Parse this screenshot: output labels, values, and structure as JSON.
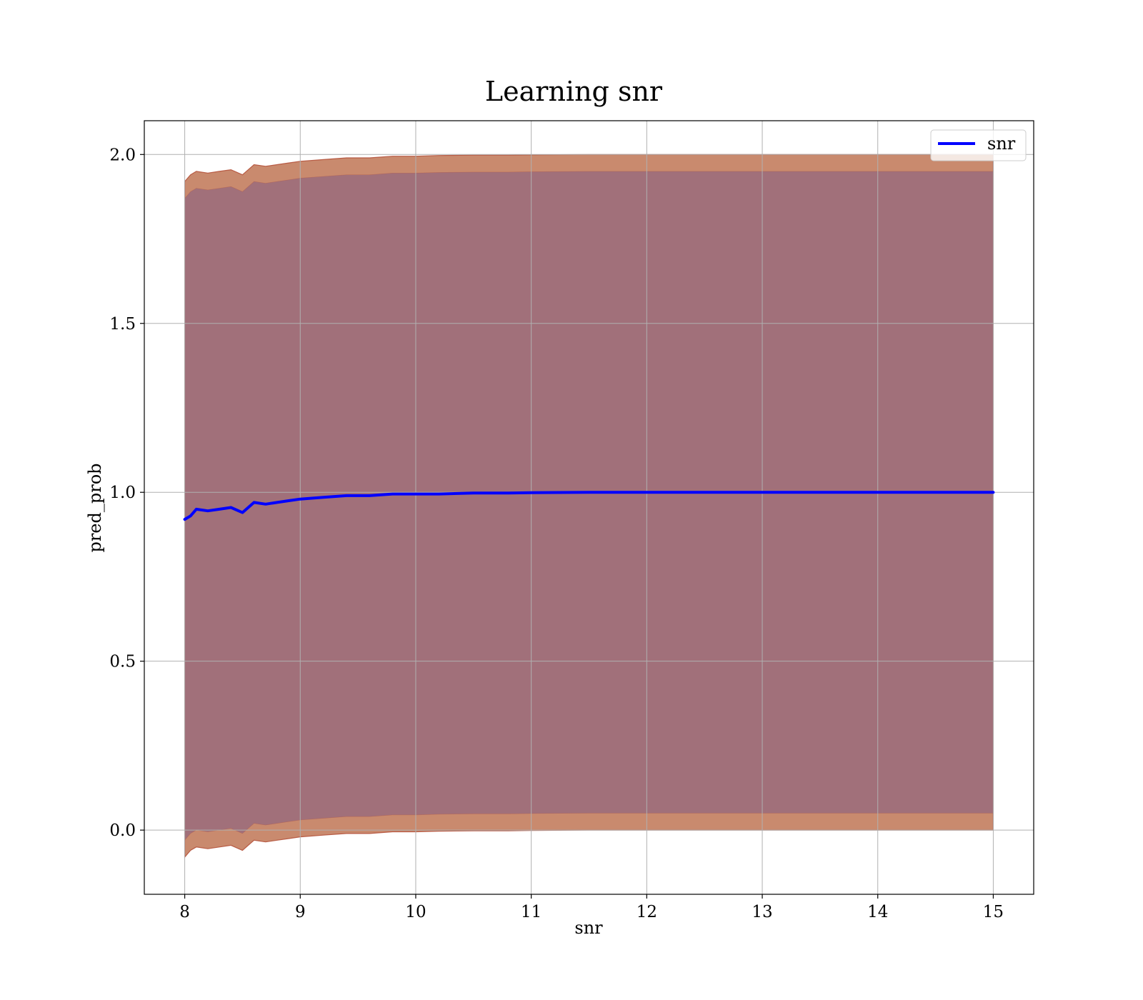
{
  "chart_data": {
    "type": "line",
    "title": "Learning snr",
    "xlabel": "snr",
    "ylabel": "pred_prob",
    "xlim": [
      7.65,
      15.35
    ],
    "ylim": [
      -0.19,
      2.1
    ],
    "xticks": [
      8,
      9,
      10,
      11,
      12,
      13,
      14,
      15
    ],
    "yticks": [
      0.0,
      0.5,
      1.0,
      1.5,
      2.0
    ],
    "xtick_labels": [
      "8",
      "9",
      "10",
      "11",
      "12",
      "13",
      "14",
      "15"
    ],
    "ytick_labels": [
      "0.0",
      "0.5",
      "1.0",
      "1.5",
      "2.0"
    ],
    "grid": true,
    "legend": {
      "position": "top-right",
      "entries": [
        "snr"
      ]
    },
    "colors": {
      "line": "#0000ff",
      "outer_band": "#c98a6e",
      "inner_band": "#a1707a",
      "band_edge": "#b4513a",
      "grid": "#b0b0b0"
    },
    "series": [
      {
        "name": "snr",
        "x": [
          8.0,
          8.05,
          8.1,
          8.2,
          8.3,
          8.4,
          8.5,
          8.6,
          8.7,
          8.8,
          8.9,
          9.0,
          9.2,
          9.4,
          9.6,
          9.8,
          10.0,
          10.2,
          10.5,
          10.8,
          11.0,
          11.5,
          12.0,
          13.0,
          14.0,
          15.0
        ],
        "y": [
          0.92,
          0.93,
          0.95,
          0.945,
          0.95,
          0.955,
          0.94,
          0.97,
          0.965,
          0.97,
          0.975,
          0.98,
          0.985,
          0.99,
          0.99,
          0.995,
          0.995,
          0.995,
          0.998,
          0.998,
          0.999,
          1.0,
          1.0,
          1.0,
          1.0,
          1.0
        ]
      }
    ],
    "bands": [
      {
        "x": [
          8.0,
          8.05,
          8.1,
          8.2,
          8.3,
          8.4,
          8.5,
          8.6,
          8.7,
          8.8,
          8.9,
          9.0,
          9.2,
          9.4,
          9.6,
          9.8,
          10.0,
          10.2,
          10.5,
          10.8,
          11.0,
          11.5,
          12.0,
          13.0,
          14.0,
          15.0
        ],
        "lower": [
          -0.08,
          -0.06,
          -0.05,
          -0.055,
          -0.05,
          -0.045,
          -0.06,
          -0.03,
          -0.035,
          -0.03,
          -0.025,
          -0.02,
          -0.015,
          -0.01,
          -0.01,
          -0.005,
          -0.005,
          -0.003,
          -0.002,
          -0.002,
          -0.001,
          0.0,
          0.0,
          0.0,
          0.0,
          0.0
        ],
        "upper": [
          1.92,
          1.94,
          1.95,
          1.945,
          1.95,
          1.955,
          1.94,
          1.97,
          1.965,
          1.97,
          1.975,
          1.98,
          1.985,
          1.99,
          1.99,
          1.995,
          1.995,
          1.997,
          1.998,
          1.998,
          1.999,
          2.0,
          2.0,
          2.0,
          2.0,
          2.0
        ]
      },
      {
        "x": [
          8.0,
          8.05,
          8.1,
          8.2,
          8.3,
          8.4,
          8.5,
          8.6,
          8.7,
          8.8,
          8.9,
          9.0,
          9.2,
          9.4,
          9.6,
          9.8,
          10.0,
          10.2,
          10.5,
          10.8,
          11.0,
          11.5,
          12.0,
          13.0,
          14.0,
          15.0
        ],
        "lower": [
          -0.03,
          -0.01,
          0.0,
          -0.005,
          0.0,
          0.005,
          -0.01,
          0.02,
          0.015,
          0.02,
          0.025,
          0.03,
          0.035,
          0.04,
          0.04,
          0.045,
          0.045,
          0.047,
          0.048,
          0.048,
          0.049,
          0.05,
          0.05,
          0.05,
          0.05,
          0.05
        ],
        "upper": [
          1.87,
          1.89,
          1.9,
          1.895,
          1.9,
          1.905,
          1.89,
          1.92,
          1.915,
          1.92,
          1.925,
          1.93,
          1.935,
          1.94,
          1.94,
          1.945,
          1.945,
          1.947,
          1.948,
          1.948,
          1.949,
          1.95,
          1.95,
          1.95,
          1.95,
          1.95
        ]
      }
    ]
  }
}
